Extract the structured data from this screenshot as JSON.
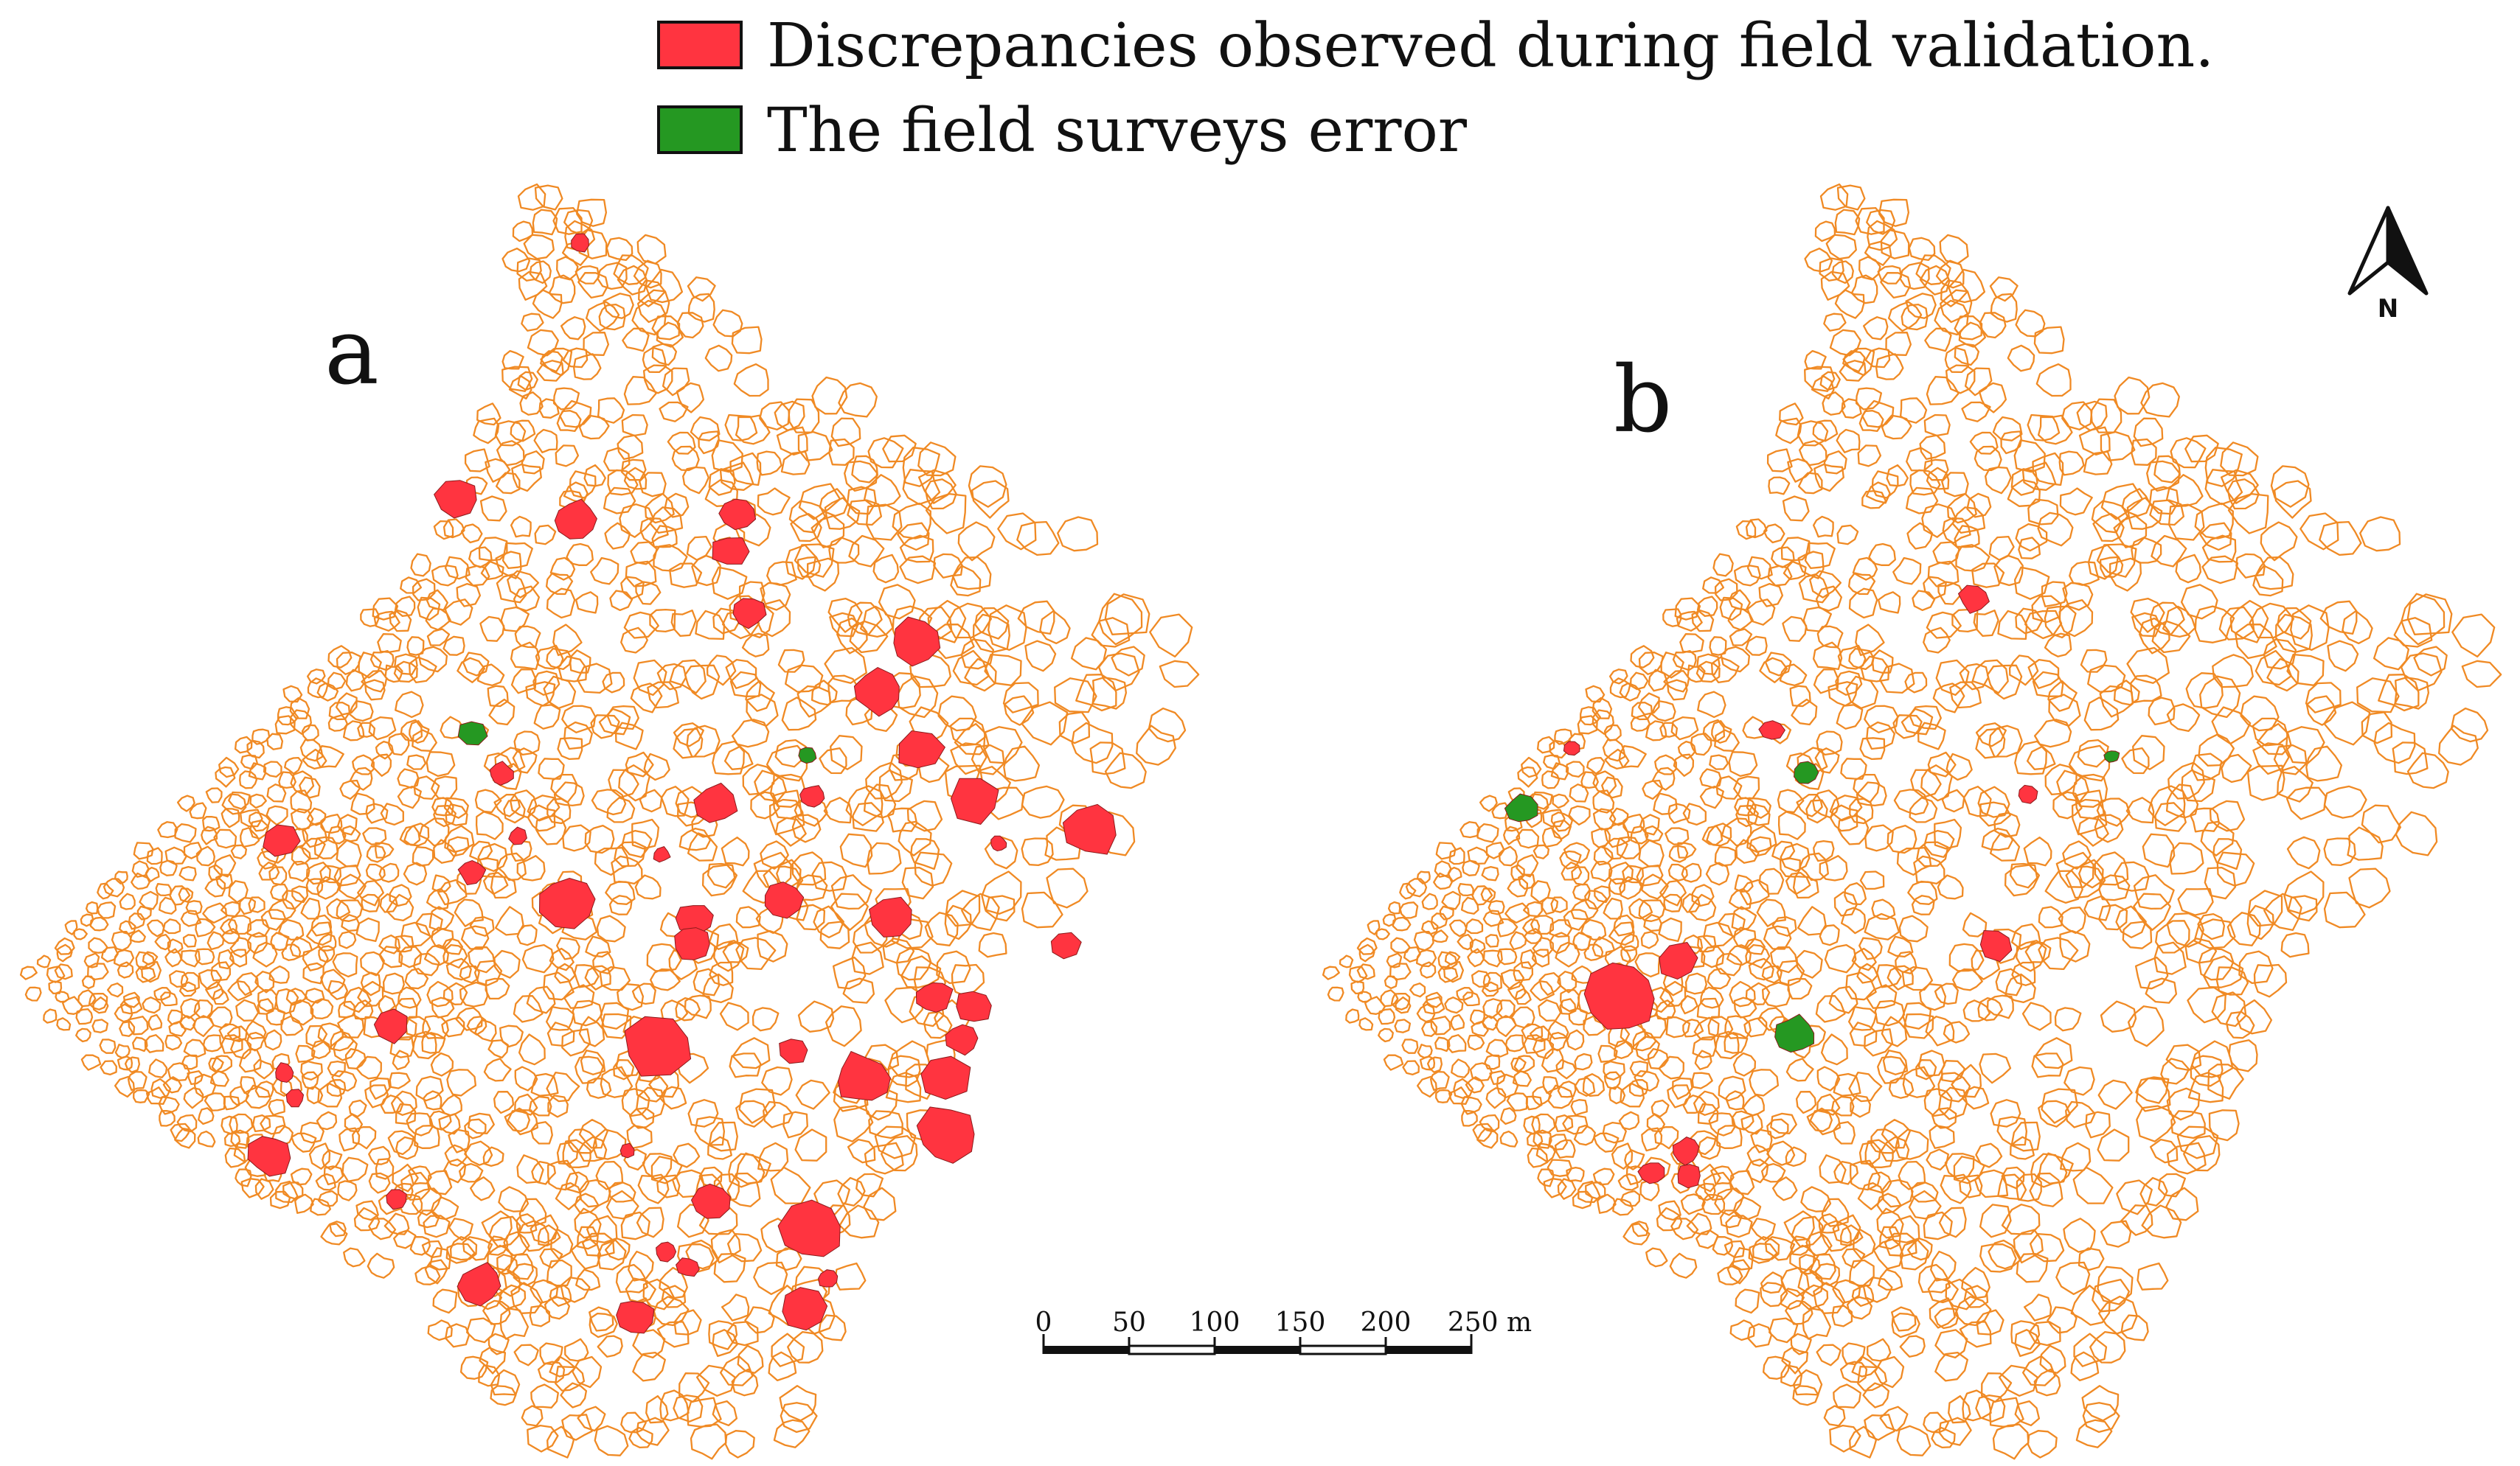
{
  "legend": {
    "items": [
      {
        "label": "Discrepancies observed during field validation.",
        "color": "#ff3440"
      },
      {
        "label": "The field surveys error",
        "color": "#259822"
      }
    ]
  },
  "panels": [
    {
      "label": "a"
    },
    {
      "label": "b"
    }
  ],
  "scale_bar": {
    "ticks": [
      "0",
      "50",
      "100",
      "150",
      "200",
      "250 m"
    ]
  },
  "north_arrow": {
    "label": "N",
    "icon": "north-arrow-icon"
  },
  "colors": {
    "parcel_outline": "#f08a24",
    "discrepancy": "#ff3440",
    "survey_error": "#259822"
  }
}
